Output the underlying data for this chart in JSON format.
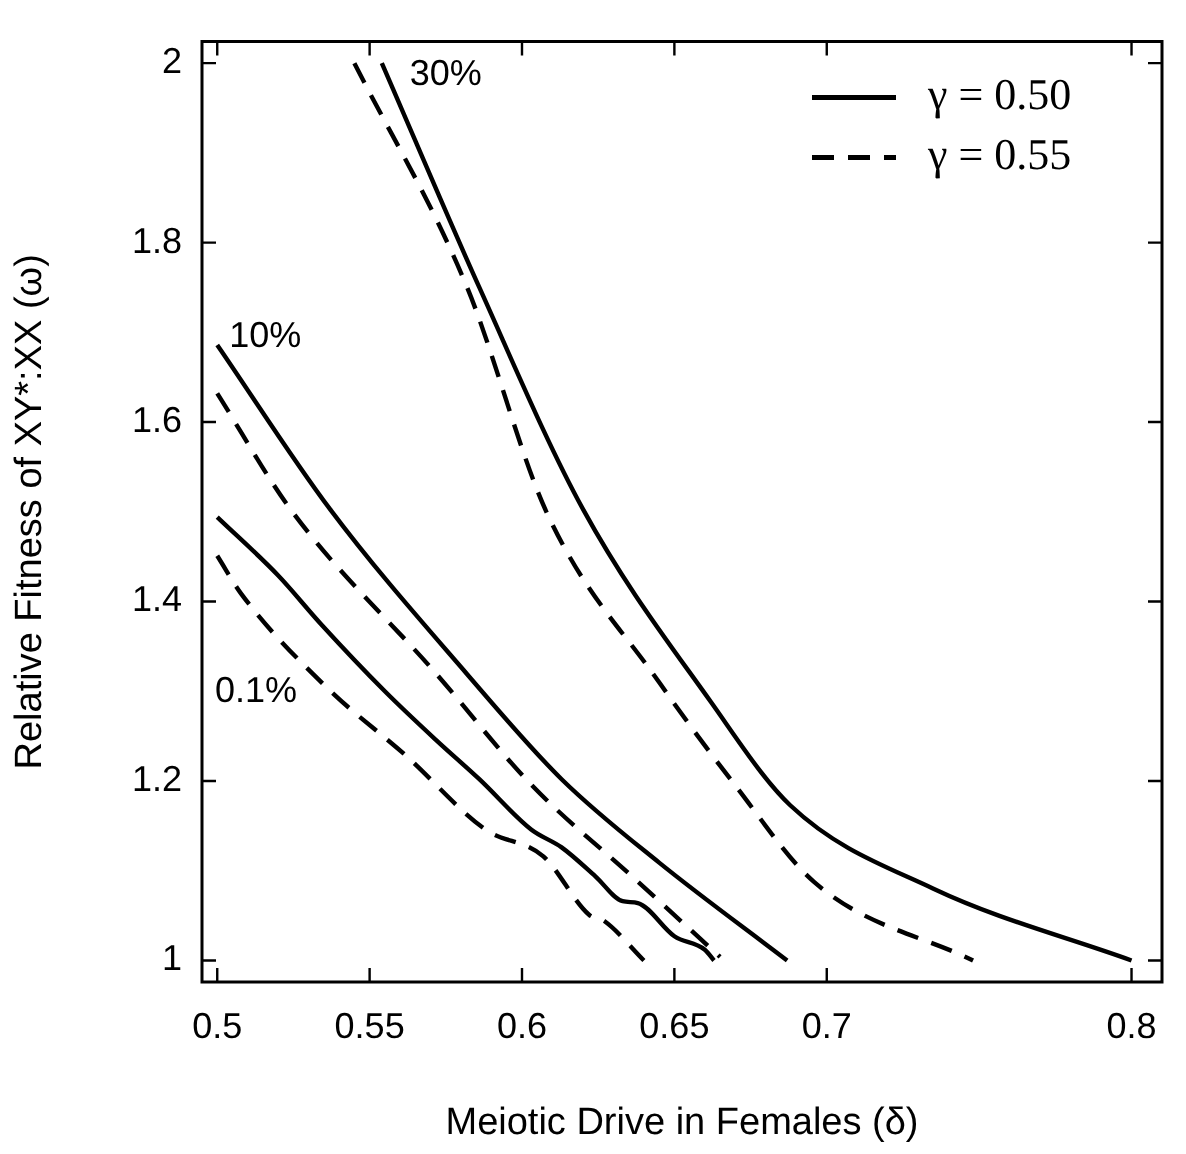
{
  "chart_data": {
    "type": "line",
    "xlabel": "Meiotic Drive in Females (δ)",
    "ylabel": "Relative Fitness of XY*:XX (ω)",
    "xlim": [
      0.495,
      0.81
    ],
    "ylim": [
      0.976,
      2.024
    ],
    "xticks": [
      0.5,
      0.55,
      0.6,
      0.65,
      0.7,
      0.8
    ],
    "yticks": [
      1,
      {
        "value": 1.2,
        "label": "1.2"
      },
      {
        "value": 1.4,
        "label": "1.4"
      },
      {
        "value": 1.6,
        "label": "1.6"
      },
      {
        "value": 1.8,
        "label": "1.8"
      },
      2
    ],
    "grid": false,
    "legend": "top right",
    "marker": "none",
    "series": [
      {
        "name": "γ = 0.50",
        "color": "#000000",
        "line_style": "solid",
        "x": [
          0.554,
          0.586,
          0.62,
          0.662,
          0.688,
          0.735,
          0.8
        ],
        "values": [
          2.0,
          1.75,
          1.503,
          1.288,
          1.173,
          1.08,
          1.0
        ]
      },
      {
        "name": "γ = 0.55",
        "color": "#000000",
        "line_style": "dashed",
        "x": [
          0.545,
          0.582,
          0.608,
          0.645,
          0.67,
          0.696,
          0.748
        ],
        "values": [
          2.0,
          1.75,
          1.5,
          1.31,
          1.195,
          1.087,
          1.0
        ]
      },
      {
        "color": "#000000",
        "line_style": "solid",
        "x": [
          0.5,
          0.537,
          0.582,
          0.613,
          0.645,
          0.687
        ],
        "values": [
          1.686,
          1.503,
          1.319,
          1.202,
          1.109,
          1.0
        ]
      },
      {
        "color": "#000000",
        "line_style": "dashed",
        "x": [
          0.5,
          0.524,
          0.572,
          0.603,
          0.636,
          0.665
        ],
        "values": [
          1.632,
          1.503,
          1.319,
          1.196,
          1.094,
          1.004
        ]
      },
      {
        "color": "#000000",
        "line_style": "solid",
        "x": [
          0.5,
          0.52,
          0.534,
          0.555,
          0.572,
          0.586,
          0.603,
          0.613,
          0.624,
          0.633,
          0.638,
          0.65,
          0.66,
          0.663
        ],
        "values": [
          1.494,
          1.429,
          1.375,
          1.3,
          1.245,
          1.202,
          1.146,
          1.126,
          1.094,
          1.066,
          1.064,
          1.027,
          1.012,
          1.0
        ]
      },
      {
        "color": "#000000",
        "line_style": "dashed",
        "x": [
          0.5,
          0.508,
          0.536,
          0.562,
          0.588,
          0.607,
          0.622,
          0.627,
          0.64
        ],
        "values": [
          1.451,
          1.408,
          1.304,
          1.228,
          1.146,
          1.116,
          1.051,
          1.044,
          1.0
        ]
      }
    ],
    "annotations": [
      {
        "text": "30%",
        "x": 0.554,
        "y": 2.0
      },
      {
        "text": "10%",
        "x": 0.5,
        "y": 1.686
      },
      {
        "text": "0.1%",
        "x": 0.536,
        "y": 1.304
      }
    ]
  }
}
